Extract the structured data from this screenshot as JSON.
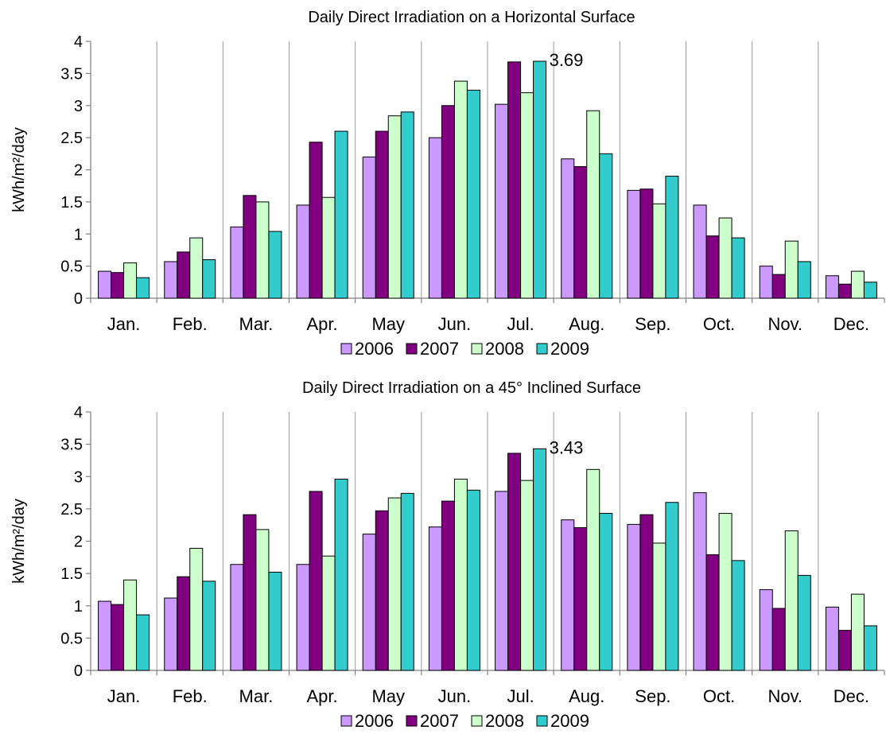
{
  "chart_data": [
    {
      "type": "bar",
      "title": "Daily Direct Irradiation on a Horizontal Surface",
      "ylabel": "kWh/m²/day",
      "ylim": [
        0,
        4
      ],
      "yticks": [
        0,
        0.5,
        1,
        1.5,
        2,
        2.5,
        3,
        3.5,
        4
      ],
      "ytick_labels": [
        "0",
        "0.5",
        "1",
        "1.5",
        "2",
        "2.5",
        "3",
        "3.5",
        "4"
      ],
      "grid": "vertical lines between categories",
      "legend_position": "bottom",
      "categories": [
        "Jan.",
        "Feb.",
        "Mar.",
        "Apr.",
        "May",
        "Jun.",
        "Jul.",
        "Aug.",
        "Sep.",
        "Oct.",
        "Nov.",
        "Dec."
      ],
      "series": [
        {
          "name": "2006",
          "color": "#cc99ff",
          "values": [
            0.42,
            0.57,
            1.11,
            1.45,
            2.2,
            2.5,
            3.02,
            2.17,
            1.68,
            1.45,
            0.5,
            0.35
          ]
        },
        {
          "name": "2007",
          "color": "#800080",
          "values": [
            0.4,
            0.72,
            1.6,
            2.43,
            2.6,
            3.0,
            3.68,
            2.05,
            1.7,
            0.97,
            0.37,
            0.22
          ]
        },
        {
          "name": "2008",
          "color": "#ccffcc",
          "values": [
            0.55,
            0.94,
            1.5,
            1.57,
            2.84,
            3.38,
            3.2,
            2.92,
            1.47,
            1.25,
            0.89,
            0.42
          ]
        },
        {
          "name": "2009",
          "color": "#33cccc",
          "values": [
            0.32,
            0.6,
            1.04,
            2.6,
            2.9,
            3.24,
            3.69,
            2.25,
            1.9,
            0.94,
            0.57,
            0.25
          ]
        }
      ],
      "annotation": {
        "text": "3.69",
        "category": "Jul.",
        "series": "2009"
      }
    },
    {
      "type": "bar",
      "title": "Daily Direct Irradiation on a 45° Inclined Surface",
      "ylabel": "kWh/m²/day",
      "ylim": [
        0,
        4
      ],
      "yticks": [
        0,
        0.5,
        1,
        1.5,
        2,
        2.5,
        3,
        3.5,
        4
      ],
      "ytick_labels": [
        "0",
        "0.5",
        "1",
        "1.5",
        "2",
        "2.5",
        "3",
        "3.5",
        "4"
      ],
      "grid": "vertical lines between categories",
      "legend_position": "bottom",
      "categories": [
        "Jan.",
        "Feb.",
        "Mar.",
        "Apr.",
        "May",
        "Jun.",
        "Jul.",
        "Aug.",
        "Sep.",
        "Oct.",
        "Nov.",
        "Dec."
      ],
      "series": [
        {
          "name": "2006",
          "color": "#cc99ff",
          "values": [
            1.07,
            1.12,
            1.64,
            1.64,
            2.11,
            2.22,
            2.77,
            2.33,
            2.26,
            2.75,
            1.25,
            0.98
          ]
        },
        {
          "name": "2007",
          "color": "#800080",
          "values": [
            1.02,
            1.45,
            2.41,
            2.77,
            2.47,
            2.62,
            3.36,
            2.21,
            2.41,
            1.79,
            0.96,
            0.62
          ]
        },
        {
          "name": "2008",
          "color": "#ccffcc",
          "values": [
            1.4,
            1.89,
            2.18,
            1.77,
            2.67,
            2.96,
            2.94,
            3.11,
            1.97,
            2.43,
            2.16,
            1.18
          ]
        },
        {
          "name": "2009",
          "color": "#33cccc",
          "values": [
            0.86,
            1.38,
            1.52,
            2.96,
            2.74,
            2.79,
            3.43,
            2.43,
            2.6,
            1.7,
            1.47,
            0.69
          ]
        }
      ],
      "annotation": {
        "text": "3.43",
        "category": "Jul.",
        "series": "2009"
      }
    }
  ]
}
